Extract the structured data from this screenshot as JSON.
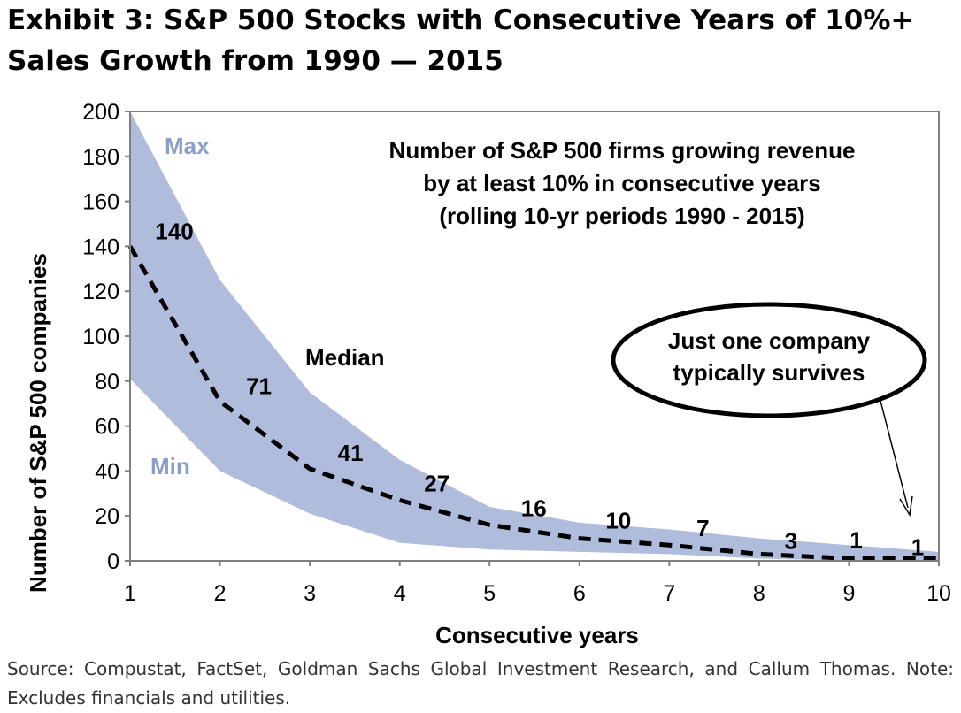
{
  "title": {
    "line1": "Exhibit 3: S&P 500 Stocks with Consecutive Years of 10%+",
    "line2": "Sales Growth from 1990 — 2015"
  },
  "source": "Source: Compustat, FactSet, Goldman Sachs Global Investment Research, and Callum Thomas. Note: Excludes financials and utilities.",
  "colors": {
    "band": "#afbcdb",
    "band_label": "#8b9dcb",
    "median": "#000000"
  },
  "chart_data": {
    "type": "area",
    "xlabel": "Consecutive years",
    "ylabel": "Number of S&P 500 companies",
    "x": [
      1,
      2,
      3,
      4,
      5,
      6,
      7,
      8,
      9,
      10
    ],
    "xlim": [
      1,
      10
    ],
    "ylim": [
      0,
      200
    ],
    "xticks": [
      "1",
      "2",
      "3",
      "4",
      "5",
      "6",
      "7",
      "8",
      "9",
      "10"
    ],
    "yticks": [
      "0",
      "20",
      "40",
      "60",
      "80",
      "100",
      "120",
      "140",
      "160",
      "180",
      "200"
    ],
    "series": [
      {
        "name": "Max",
        "values": [
          200,
          125,
          75,
          45,
          24,
          17,
          14,
          10,
          7,
          4
        ]
      },
      {
        "name": "Min",
        "values": [
          81,
          40,
          21,
          8,
          5,
          4,
          3,
          1,
          0,
          0
        ]
      },
      {
        "name": "Median",
        "values": [
          140,
          71,
          41,
          27,
          16,
          10,
          7,
          3,
          1,
          1
        ]
      }
    ],
    "data_labels": [
      "140",
      "71",
      "41",
      "27",
      "16",
      "10",
      "7",
      "3",
      "1",
      "1"
    ],
    "annotation_box": [
      "Number of S&P 500 firms growing revenue",
      "by at least 10% in consecutive years",
      "(rolling 10-yr periods 1990 - 2015)"
    ],
    "callout": [
      "Just one company",
      "typically survives"
    ],
    "grid": false
  }
}
